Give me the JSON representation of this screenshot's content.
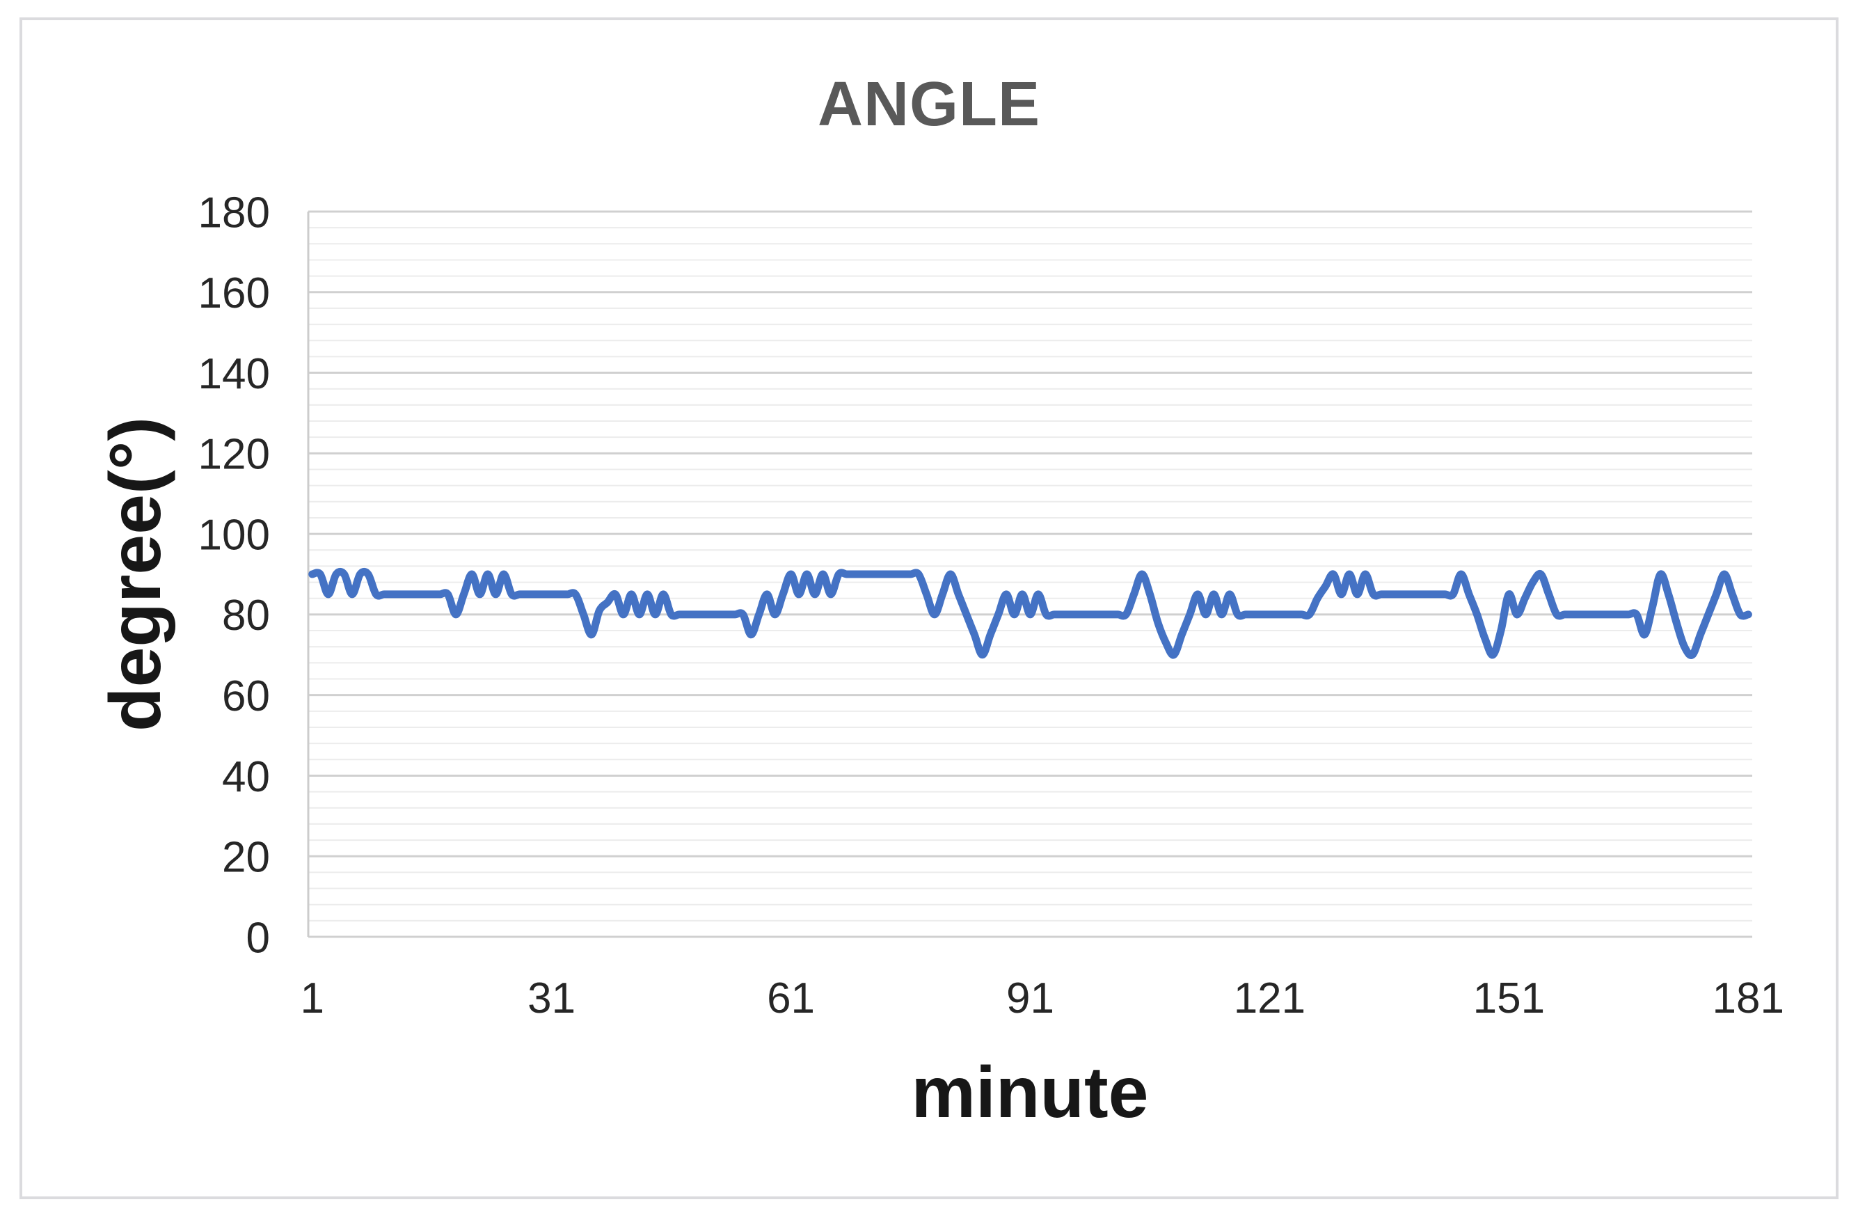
{
  "chart": {
    "title": "ANGLE",
    "y_axis_title": "degree(°)",
    "x_axis_title": "minute"
  },
  "style": {
    "line_color": "#4472C4",
    "line_width": 11,
    "title_color": "#595959",
    "axis_title_color": "#171717",
    "tick_label_color": "#262626",
    "major_grid_color": "#d0d0d0",
    "minor_grid_color": "#ececec",
    "border_color": "#dbdbde",
    "background_color": "#ffffff"
  },
  "chart_data": {
    "type": "line",
    "title": "ANGLE",
    "xlabel": "minute",
    "ylabel": "degree(°)",
    "ylim": [
      0,
      180
    ],
    "y_major_unit": 20,
    "y_minor_unit": 4,
    "y_tick_labels": [
      0,
      20,
      40,
      60,
      80,
      100,
      120,
      140,
      160,
      180
    ],
    "x_tick_labels": [
      1,
      31,
      61,
      91,
      121,
      151,
      181
    ],
    "x_range": [
      1,
      181
    ],
    "x_step": 1,
    "grid": "horizontal major + minor",
    "legend_position": "none",
    "smoothed_line": true,
    "series": [
      {
        "name": "ANGLE",
        "values": [
          90,
          90,
          85,
          90,
          90,
          85,
          90,
          90,
          85,
          85,
          85,
          85,
          85,
          85,
          85,
          85,
          85,
          85,
          80,
          85,
          90,
          85,
          90,
          85,
          90,
          85,
          85,
          85,
          85,
          85,
          85,
          85,
          85,
          85,
          80,
          75,
          81,
          83,
          85,
          80,
          85,
          80,
          85,
          80,
          85,
          80,
          80,
          80,
          80,
          80,
          80,
          80,
          80,
          80,
          80,
          75,
          80,
          85,
          80,
          85,
          90,
          85,
          90,
          85,
          90,
          85,
          90,
          90,
          90,
          90,
          90,
          90,
          90,
          90,
          90,
          90,
          90,
          85,
          80,
          85,
          90,
          85,
          80,
          75,
          70,
          75,
          80,
          85,
          80,
          85,
          80,
          85,
          80,
          80,
          80,
          80,
          80,
          80,
          80,
          80,
          80,
          80,
          80,
          85,
          90,
          85,
          78,
          73,
          70,
          75,
          80,
          85,
          80,
          85,
          80,
          85,
          80,
          80,
          80,
          80,
          80,
          80,
          80,
          80,
          80,
          80,
          84,
          87,
          90,
          85,
          90,
          85,
          90,
          85,
          85,
          85,
          85,
          85,
          85,
          85,
          85,
          85,
          85,
          85,
          90,
          85,
          80,
          74,
          70,
          76,
          85,
          80,
          84,
          88,
          90,
          85,
          80,
          80,
          80,
          80,
          80,
          80,
          80,
          80,
          80,
          80,
          80,
          75,
          82,
          90,
          85,
          78,
          72,
          70,
          75,
          80,
          85,
          90,
          85,
          80,
          80
        ]
      }
    ]
  }
}
